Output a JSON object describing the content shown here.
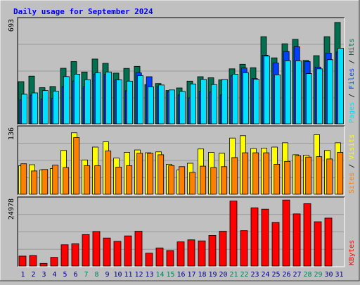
{
  "title": "Daily usage for September 2024",
  "colors": {
    "background": "#c0c0c0",
    "plot": "#c0c0c0",
    "grid": "#9a9a9a",
    "title": "#0000ff",
    "hits": "#007050",
    "files": "#0040ff",
    "pages": "#00e0ff",
    "visits": "#ffff00",
    "sites": "#ff8000",
    "kbytes": "#ff0000",
    "sep": "#000000",
    "weekend_day": "#00805c",
    "weekday": "#000080"
  },
  "chart_data": [
    {
      "type": "bar",
      "title": "Daily usage for September 2024",
      "ymax_label": "693",
      "ylim": [
        0,
        693
      ],
      "grid": true,
      "legend": [
        "Pages",
        "Files",
        "Hits"
      ],
      "categories": [
        "1",
        "2",
        "3",
        "4",
        "5",
        "6",
        "7",
        "8",
        "9",
        "10",
        "11",
        "12",
        "13",
        "14",
        "15",
        "16",
        "17",
        "18",
        "19",
        "20",
        "21",
        "22",
        "23",
        "24",
        "25",
        "26",
        "27",
        "28",
        "29",
        "30",
        "31"
      ],
      "series": [
        {
          "name": "Hits",
          "values": [
            285,
            322,
            244,
            252,
            375,
            420,
            350,
            437,
            408,
            342,
            374,
            388,
            265,
            272,
            225,
            242,
            288,
            318,
            311,
            297,
            371,
            402,
            379,
            588,
            445,
            540,
            570,
            428,
            460,
            588,
            684
          ]
        },
        {
          "name": "Files",
          "values": [
            162,
            194,
            167,
            172,
            251,
            288,
            250,
            336,
            334,
            296,
            223,
            344,
            318,
            250,
            218,
            195,
            175,
            220,
            215,
            195,
            325,
            377,
            305,
            463,
            410,
            488,
            520,
            420,
            383,
            477,
            484
          ]
        },
        {
          "name": "Pages",
          "values": [
            200,
            209,
            225,
            220,
            319,
            335,
            298,
            345,
            350,
            296,
            288,
            325,
            250,
            262,
            229,
            219,
            269,
            300,
            265,
            300,
            335,
            345,
            301,
            457,
            331,
            426,
            425,
            339,
            371,
            433,
            510
          ]
        }
      ]
    },
    {
      "type": "bar",
      "ymax_label": "136",
      "ylim": [
        0,
        136
      ],
      "grid": true,
      "legend": [
        "Sites",
        "Visits"
      ],
      "categories": [
        "1",
        "2",
        "3",
        "4",
        "5",
        "6",
        "7",
        "8",
        "9",
        "10",
        "11",
        "12",
        "13",
        "14",
        "15",
        "16",
        "17",
        "18",
        "19",
        "20",
        "21",
        "22",
        "23",
        "24",
        "25",
        "26",
        "27",
        "28",
        "29",
        "30",
        "31"
      ],
      "series": [
        {
          "name": "Visits",
          "values": [
            60,
            62,
            51,
            54,
            92,
            129,
            72,
            99,
            110,
            76,
            88,
            93,
            87,
            89,
            63,
            51,
            65,
            95,
            88,
            86,
            118,
            123,
            96,
            97,
            99,
            108,
            83,
            82,
            125,
            92,
            108
          ]
        },
        {
          "name": "Sites",
          "values": [
            64,
            49,
            52,
            61,
            56,
            119,
            60,
            60,
            91,
            57,
            60,
            86,
            86,
            83,
            60,
            58,
            46,
            59,
            56,
            58,
            77,
            87,
            87,
            87,
            63,
            69,
            81,
            78,
            79,
            74,
            88
          ]
        }
      ]
    },
    {
      "type": "bar",
      "ymax_label": "24978",
      "ylim": [
        0,
        24978
      ],
      "grid": true,
      "legend": [
        "KBytes"
      ],
      "categories": [
        "1",
        "2",
        "3",
        "4",
        "5",
        "6",
        "7",
        "8",
        "9",
        "10",
        "11",
        "12",
        "13",
        "14",
        "15",
        "16",
        "17",
        "18",
        "19",
        "20",
        "21",
        "22",
        "23",
        "24",
        "25",
        "26",
        "27",
        "28",
        "29",
        "30",
        "31"
      ],
      "series": [
        {
          "name": "KBytes",
          "values": [
            3800,
            4000,
            1000,
            3300,
            8100,
            8500,
            12000,
            13200,
            10700,
            9400,
            11500,
            13300,
            4900,
            6900,
            5900,
            9200,
            10000,
            9600,
            11700,
            13300,
            24800,
            13500,
            22200,
            21700,
            16600,
            25200,
            19900,
            23800,
            16900,
            18300,
            0
          ]
        }
      ]
    }
  ],
  "day_colors": [
    "weekday",
    "weekday",
    "weekday",
    "weekday",
    "weekday",
    "weekday",
    "weekend_day",
    "weekend_day",
    "weekday",
    "weekday",
    "weekday",
    "weekday",
    "weekday",
    "weekend_day",
    "weekend_day",
    "weekday",
    "weekday",
    "weekday",
    "weekday",
    "weekday",
    "weekend_day",
    "weekend_day",
    "weekday",
    "weekday",
    "weekday",
    "weekday",
    "weekday",
    "weekend_day",
    "weekend_day",
    "weekday",
    "weekday"
  ]
}
